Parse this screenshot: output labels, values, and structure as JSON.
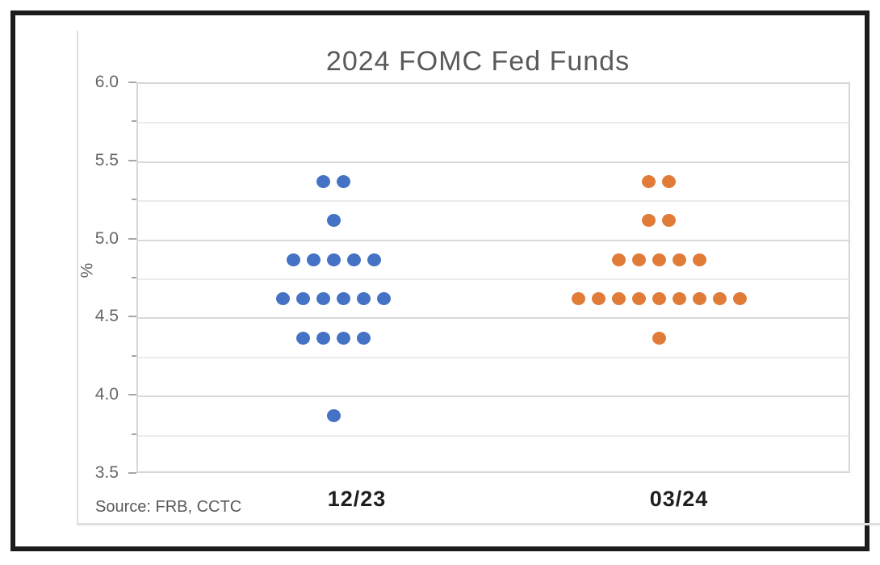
{
  "chart": {
    "title": "2024 FOMC Fed Funds",
    "y_axis": {
      "label": "%",
      "tick_labels": [
        "6.0",
        "5.5",
        "5.0",
        "4.5",
        "4.0",
        "3.5"
      ]
    },
    "x_labels": [
      "12/23",
      "03/24"
    ],
    "source": "Source: FRB, CCTC"
  },
  "chart_data": {
    "type": "scatter",
    "subtype": "fomc-dot-plot",
    "title": "2024 FOMC Fed Funds",
    "xlabel": "",
    "ylabel": "%",
    "ylim": [
      3.5,
      6.0
    ],
    "major_tick_interval": 0.5,
    "gridline_interval": 0.25,
    "grid": true,
    "legend": false,
    "categories": [
      "12/23",
      "03/24"
    ],
    "series": [
      {
        "name": "12/23",
        "color": "#4472C4",
        "total_dots": 19,
        "dots": [
          {
            "rate": 5.375,
            "count": 2
          },
          {
            "rate": 5.125,
            "count": 1
          },
          {
            "rate": 4.875,
            "count": 5
          },
          {
            "rate": 4.625,
            "count": 6
          },
          {
            "rate": 4.375,
            "count": 4
          },
          {
            "rate": 3.875,
            "count": 1
          }
        ]
      },
      {
        "name": "03/24",
        "color": "#E17B38",
        "total_dots": 19,
        "dots": [
          {
            "rate": 5.375,
            "count": 2
          },
          {
            "rate": 5.125,
            "count": 2
          },
          {
            "rate": 4.875,
            "count": 5
          },
          {
            "rate": 4.625,
            "count": 9
          },
          {
            "rate": 4.375,
            "count": 1
          }
        ]
      }
    ],
    "source": "Source: FRB, CCTC"
  }
}
